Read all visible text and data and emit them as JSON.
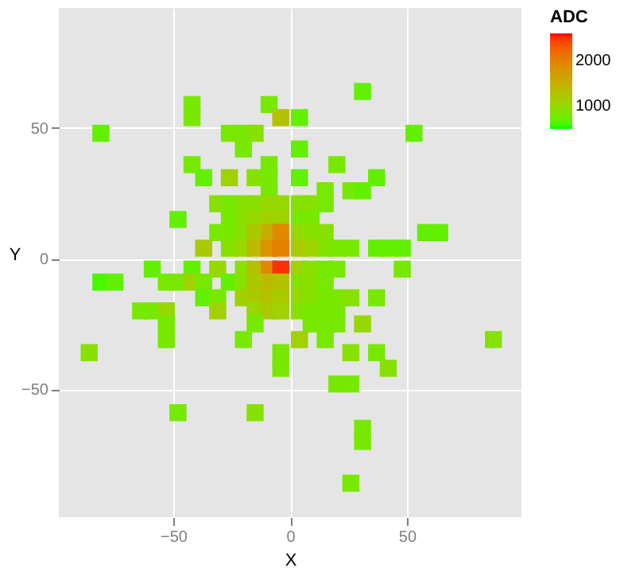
{
  "chart_data": {
    "type": "scatter",
    "xlabel": "X",
    "ylabel": "Y",
    "legend_title": "ADC",
    "marker": "square",
    "grid": true,
    "xlim": [
      -99,
      99
    ],
    "ylim": [
      -99,
      96
    ],
    "xticks": [
      -50,
      0,
      50
    ],
    "yticks": [
      -50,
      0,
      50
    ],
    "clim": [
      500,
      2600
    ],
    "cticks": [
      1000,
      2000
    ],
    "x": [
      31,
      -42,
      -42,
      -9,
      -4,
      4,
      -81,
      -26,
      -20,
      -15,
      53,
      -20,
      4,
      -42,
      -9,
      20,
      -37,
      -26,
      -15,
      -9,
      4,
      37,
      -9,
      15,
      26,
      31,
      -31,
      -26,
      -20,
      -15,
      -9,
      -4,
      4,
      9,
      15,
      -48,
      -26,
      -20,
      -15,
      -9,
      -4,
      4,
      9,
      -31,
      -26,
      -20,
      -15,
      -9,
      -4,
      4,
      9,
      15,
      58,
      64,
      -37,
      -26,
      -20,
      -15,
      -9,
      -4,
      4,
      9,
      15,
      20,
      26,
      37,
      42,
      48,
      -59,
      -42,
      -31,
      -20,
      -15,
      -9,
      -4,
      4,
      9,
      15,
      20,
      48,
      -81,
      -75,
      -53,
      -48,
      -42,
      -37,
      -26,
      -20,
      -15,
      -9,
      -4,
      4,
      9,
      15,
      -37,
      -31,
      -20,
      -15,
      -9,
      -4,
      4,
      9,
      15,
      20,
      26,
      37,
      -64,
      -59,
      -53,
      -31,
      -15,
      -9,
      -4,
      4,
      9,
      15,
      20,
      -53,
      -15,
      9,
      15,
      20,
      31,
      -53,
      -20,
      4,
      15,
      87,
      -86,
      -4,
      26,
      37,
      -4,
      42,
      20,
      26,
      -48,
      -15,
      31,
      31,
      26
    ],
    "values": [
      64,
      59,
      54,
      59,
      54,
      54,
      48,
      48,
      48,
      48,
      48,
      42,
      42,
      36,
      36,
      36,
      31,
      31,
      31,
      31,
      31,
      31,
      26,
      26,
      26,
      26,
      21,
      21,
      21,
      21,
      21,
      21,
      21,
      21,
      21,
      15,
      15,
      15,
      15,
      15,
      15,
      15,
      15,
      10,
      10,
      10,
      10,
      10,
      10,
      10,
      10,
      10,
      10,
      10,
      4,
      4,
      4,
      4,
      4,
      4,
      4,
      4,
      4,
      4,
      4,
      4,
      4,
      4,
      -4,
      -4,
      -4,
      -4,
      -4,
      -4,
      -4,
      -4,
      -4,
      -4,
      -4,
      -4,
      -9,
      -9,
      -9,
      -9,
      -9,
      -9,
      -9,
      -9,
      -9,
      -9,
      -9,
      -9,
      -9,
      -9,
      -15,
      -15,
      -15,
      -15,
      -15,
      -15,
      -15,
      -15,
      -15,
      -15,
      -15,
      -15,
      -20,
      -20,
      -20,
      -20,
      -20,
      -20,
      -20,
      -20,
      -20,
      -20,
      -20,
      -25,
      -25,
      -25,
      -25,
      -25,
      -25,
      -31,
      -31,
      -31,
      -31,
      -31,
      -36,
      -36,
      -36,
      -36,
      -42,
      -42,
      -48,
      -48,
      -59,
      -59,
      -65,
      -70,
      -86
    ],
    "cvalues": [
      700,
      800,
      800,
      800,
      1300,
      700,
      700,
      800,
      800,
      900,
      700,
      800,
      700,
      800,
      800,
      800,
      700,
      1100,
      900,
      800,
      700,
      700,
      800,
      800,
      800,
      700,
      900,
      800,
      900,
      900,
      1000,
      1000,
      900,
      900,
      800,
      700,
      800,
      900,
      1000,
      1100,
      1100,
      800,
      800,
      800,
      800,
      900,
      1200,
      1500,
      1900,
      1000,
      900,
      900,
      700,
      700,
      1200,
      900,
      1000,
      1400,
      1800,
      2000,
      1200,
      1100,
      900,
      800,
      800,
      700,
      700,
      700,
      700,
      700,
      1000,
      900,
      1300,
      1900,
      2500,
      1100,
      900,
      800,
      800,
      800,
      600,
      700,
      800,
      800,
      1100,
      800,
      700,
      900,
      1200,
      1400,
      1300,
      900,
      900,
      800,
      700,
      800,
      1100,
      1200,
      1300,
      1200,
      1000,
      900,
      800,
      800,
      900,
      800,
      800,
      800,
      1000,
      1100,
      1000,
      1200,
      1100,
      900,
      800,
      800,
      800,
      800,
      800,
      800,
      800,
      800,
      1000,
      800,
      800,
      1100,
      800,
      900,
      900,
      800,
      900,
      800,
      800,
      900,
      800,
      800,
      800,
      900,
      800,
      800,
      800
    ]
  }
}
